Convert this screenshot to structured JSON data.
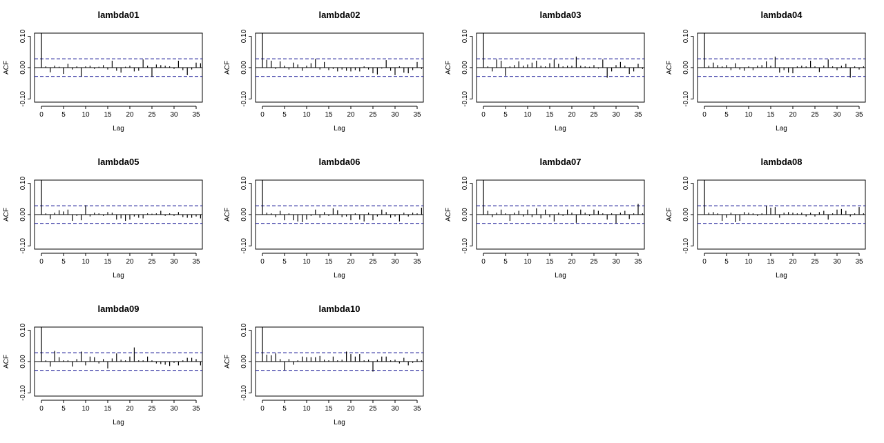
{
  "chart_data": {
    "type": "bar",
    "layout": "3x4 grid of ACF plots",
    "ylabel": "ACF",
    "xlabel": "Lag",
    "xlim": [
      0,
      36
    ],
    "ylim": [
      -0.1,
      0.1
    ],
    "y_ticks": [
      "-0.10",
      "0.00",
      "0.10"
    ],
    "x_ticks": [
      0,
      5,
      10,
      15,
      20,
      25,
      30,
      35
    ],
    "ci_colors": {
      "bound": "#00008b",
      "bar": "#000000"
    },
    "confidence_bound": 0.028,
    "panels": [
      {
        "title": "lambda01",
        "acf": [
          1.0,
          0.004,
          -0.015,
          0.006,
          0.003,
          -0.02,
          0.012,
          -0.006,
          0.004,
          -0.028,
          0.004,
          0.006,
          -0.004,
          0.003,
          0.008,
          -0.006,
          0.022,
          -0.01,
          -0.016,
          0.003,
          0.006,
          -0.012,
          -0.01,
          0.026,
          0.006,
          -0.03,
          0.01,
          0.008,
          0.006,
          0.004,
          -0.004,
          0.022,
          -0.008,
          -0.024,
          -0.006,
          0.016,
          0.014
        ]
      },
      {
        "title": "lambda02",
        "acf": [
          1.0,
          0.025,
          0.022,
          -0.004,
          0.02,
          0.006,
          -0.006,
          0.016,
          0.01,
          -0.01,
          0.006,
          0.014,
          0.028,
          -0.006,
          0.018,
          -0.008,
          -0.004,
          -0.012,
          -0.006,
          -0.01,
          -0.012,
          -0.008,
          -0.012,
          0.004,
          -0.006,
          -0.018,
          -0.022,
          -0.003,
          0.024,
          -0.01,
          -0.024,
          0.004,
          -0.016,
          -0.018,
          -0.008,
          0.018,
          -0.004
        ]
      },
      {
        "title": "lambda03",
        "acf": [
          1.0,
          0.004,
          -0.012,
          0.026,
          0.022,
          -0.026,
          0.004,
          0.008,
          0.02,
          0.006,
          0.01,
          0.016,
          0.022,
          0.006,
          0.004,
          0.014,
          0.026,
          0.012,
          0.004,
          0.006,
          0.006,
          0.035,
          0.006,
          0.004,
          0.003,
          0.008,
          -0.003,
          0.026,
          -0.032,
          -0.012,
          0.008,
          0.018,
          0.006,
          -0.02,
          -0.012,
          0.012,
          -0.004
        ]
      },
      {
        "title": "lambda04",
        "acf": [
          1.0,
          0.006,
          0.016,
          0.008,
          0.004,
          0.008,
          -0.008,
          0.014,
          -0.006,
          -0.01,
          0.004,
          -0.008,
          0.006,
          0.008,
          0.02,
          0.006,
          0.035,
          -0.016,
          -0.008,
          -0.016,
          -0.018,
          0.004,
          0.006,
          0.004,
          0.022,
          0.004,
          -0.014,
          0.006,
          0.026,
          0.004,
          -0.008,
          0.006,
          0.012,
          -0.032,
          0.004,
          -0.006,
          0.004
        ]
      },
      {
        "title": "lambda05",
        "acf": [
          1.0,
          0.004,
          -0.014,
          0.006,
          0.014,
          0.01,
          0.016,
          -0.02,
          -0.004,
          -0.018,
          0.03,
          -0.006,
          0.006,
          0.004,
          -0.004,
          0.008,
          0.006,
          -0.016,
          -0.012,
          -0.02,
          -0.016,
          -0.006,
          -0.01,
          -0.012,
          0.004,
          0.003,
          0.004,
          0.012,
          -0.004,
          0.004,
          -0.004,
          0.008,
          -0.008,
          -0.01,
          -0.01,
          -0.006,
          -0.012
        ]
      },
      {
        "title": "lambda06",
        "acf": [
          1.0,
          0.006,
          0.004,
          -0.008,
          0.012,
          -0.018,
          0.004,
          -0.018,
          -0.022,
          -0.024,
          -0.016,
          -0.004,
          0.016,
          -0.01,
          0.008,
          -0.004,
          0.02,
          0.014,
          -0.008,
          -0.006,
          -0.018,
          0.004,
          -0.016,
          -0.022,
          0.006,
          -0.018,
          -0.006,
          0.016,
          0.008,
          -0.01,
          -0.006,
          -0.022,
          0.006,
          -0.006,
          0.006,
          0.004,
          0.022
        ]
      },
      {
        "title": "lambda07",
        "acf": [
          1.0,
          0.012,
          -0.008,
          0.006,
          0.016,
          0.004,
          -0.02,
          0.006,
          0.012,
          -0.006,
          0.016,
          -0.008,
          0.02,
          -0.012,
          0.016,
          -0.008,
          -0.022,
          0.006,
          -0.004,
          0.016,
          0.006,
          -0.026,
          0.016,
          0.006,
          -0.004,
          0.016,
          0.012,
          0.004,
          -0.016,
          0.004,
          -0.028,
          0.006,
          0.012,
          -0.014,
          0.004,
          0.034,
          0.004
        ]
      },
      {
        "title": "lambda08",
        "acf": [
          1.0,
          0.006,
          0.008,
          0.004,
          -0.02,
          -0.01,
          0.006,
          -0.024,
          -0.02,
          0.008,
          0.006,
          0.004,
          -0.004,
          0.004,
          0.028,
          0.022,
          0.024,
          -0.01,
          0.006,
          0.008,
          0.006,
          0.004,
          0.006,
          -0.006,
          0.006,
          -0.006,
          0.008,
          0.012,
          -0.016,
          0.004,
          0.016,
          0.018,
          0.012,
          -0.006,
          0.004,
          0.024,
          0.004
        ]
      },
      {
        "title": "lambda09",
        "acf": [
          1.0,
          0.004,
          -0.016,
          0.034,
          0.014,
          0.004,
          0.004,
          -0.016,
          0.008,
          0.032,
          -0.012,
          0.016,
          0.014,
          -0.006,
          0.008,
          -0.022,
          0.01,
          0.026,
          0.006,
          0.004,
          0.016,
          0.045,
          0.004,
          0.004,
          0.016,
          0.004,
          -0.006,
          -0.008,
          -0.01,
          -0.014,
          -0.004,
          -0.012,
          0.004,
          0.012,
          0.012,
          0.008,
          -0.012
        ]
      },
      {
        "title": "lambda10",
        "acf": [
          1.0,
          0.022,
          0.02,
          0.026,
          0.008,
          -0.028,
          0.008,
          -0.01,
          0.004,
          0.016,
          0.014,
          0.014,
          0.014,
          0.018,
          0.006,
          0.004,
          0.016,
          0.004,
          0.006,
          0.032,
          0.024,
          0.016,
          0.024,
          0.004,
          0.006,
          -0.032,
          0.006,
          0.016,
          0.016,
          0.004,
          0.006,
          -0.006,
          0.012,
          -0.012,
          -0.004,
          0.008,
          0.004
        ]
      }
    ]
  }
}
